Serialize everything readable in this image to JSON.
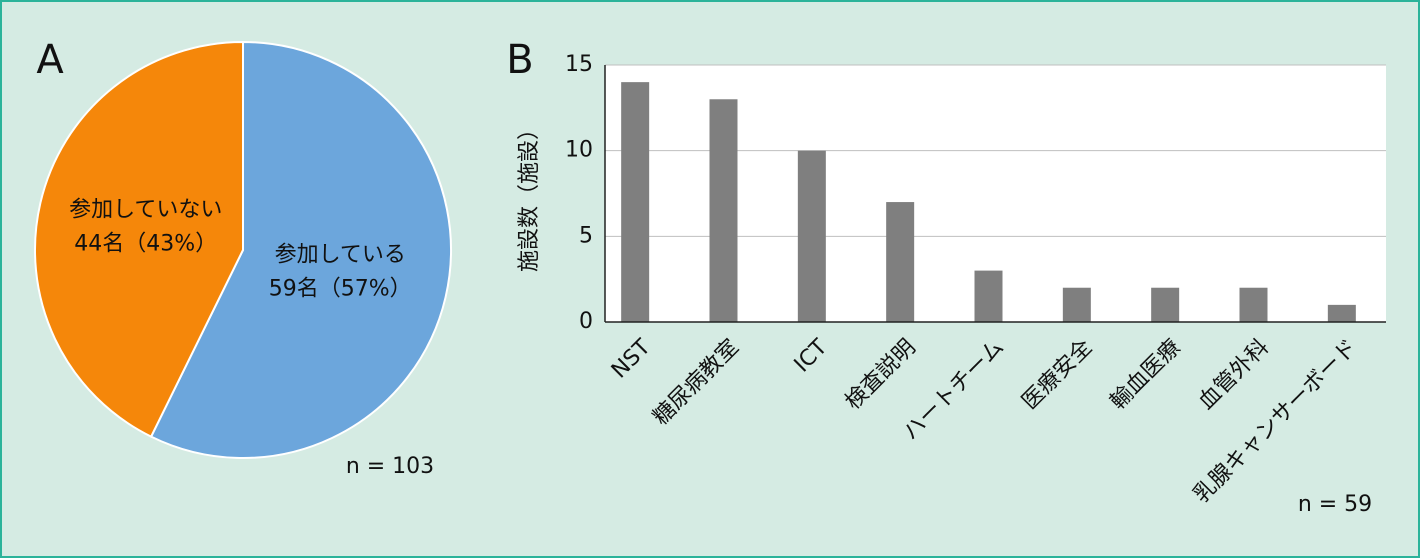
{
  "chart_data": [
    {
      "type": "pie",
      "panel": "A",
      "categories": [
        "参加している",
        "参加していない"
      ],
      "values": [
        59,
        44
      ],
      "value_labels": [
        "59名（57%）",
        "44名（43%）"
      ],
      "colors": [
        "#6ca6dc",
        "#f5870a"
      ],
      "note": "n = 103"
    },
    {
      "type": "bar",
      "panel": "B",
      "categories": [
        "NST",
        "糖尿病教室",
        "ICT",
        "検査説明",
        "ハートチーム",
        "医療安全",
        "輸血医療",
        "血管外科",
        "乳腺キャンサーボード"
      ],
      "values": [
        14,
        13,
        10,
        7,
        3,
        2,
        2,
        2,
        1
      ],
      "color": "#7f7f7f",
      "ylabel": "施設数（施設）",
      "ylim": [
        0,
        15
      ],
      "yticks": [
        0,
        5,
        10,
        15
      ],
      "grid": true,
      "note": "n = 59"
    }
  ]
}
